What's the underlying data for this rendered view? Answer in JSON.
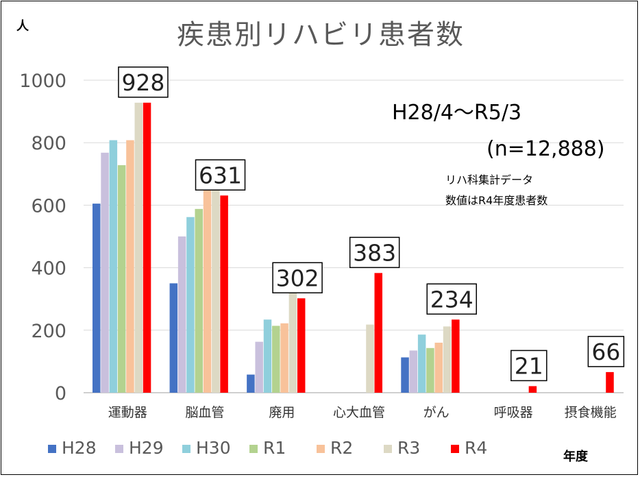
{
  "chart_data": {
    "type": "bar",
    "title": "疾患別リハビリ患者数",
    "y_unit": "人",
    "x_unit": "年度",
    "ylim": [
      0,
      1000
    ],
    "yticks": [
      0,
      200,
      400,
      600,
      800,
      1000
    ],
    "grid": true,
    "legend_position": "bottom",
    "categories": [
      "運動器",
      "脳血管",
      "廃用",
      "心大血管",
      "がん",
      "呼吸器",
      "摂食機能"
    ],
    "series": [
      {
        "name": "H28",
        "color": "#4472c4",
        "values": [
          605,
          350,
          58,
          null,
          113,
          null,
          null
        ]
      },
      {
        "name": "H29",
        "color": "#c9c0dd",
        "values": [
          768,
          500,
          163,
          null,
          135,
          null,
          null
        ]
      },
      {
        "name": "H30",
        "color": "#8fcfdc",
        "values": [
          808,
          562,
          234,
          null,
          186,
          null,
          null
        ]
      },
      {
        "name": "R1",
        "color": "#b3d28f",
        "values": [
          728,
          588,
          214,
          null,
          143,
          null,
          null
        ]
      },
      {
        "name": "R2",
        "color": "#f8c29a",
        "values": [
          808,
          648,
          222,
          null,
          160,
          null,
          null
        ]
      },
      {
        "name": "R3",
        "color": "#ddd9c4",
        "values": [
          928,
          680,
          318,
          218,
          212,
          null,
          null
        ]
      },
      {
        "name": "R4",
        "color": "#ff0000",
        "values": [
          928,
          631,
          302,
          383,
          234,
          21,
          66
        ]
      }
    ],
    "value_labels": [
      "928",
      "631",
      "302",
      "383",
      "234",
      "21",
      "66"
    ],
    "annotations": {
      "period": "H28/4～R5/3",
      "n": "(n=12,888)",
      "note1": "リハ科集計データ",
      "note2": "数値はR4年度患者数"
    }
  }
}
